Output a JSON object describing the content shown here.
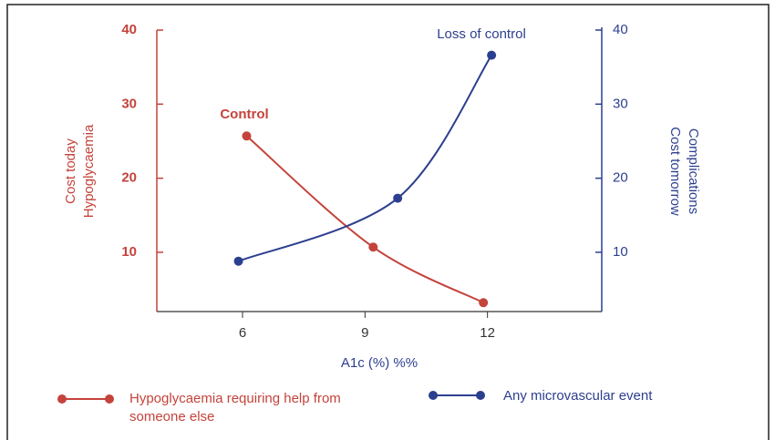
{
  "chart_data": {
    "type": "line",
    "xlabel": "A1c (%) %%",
    "ylabel": [
      "Cost today",
      "Hypoglycaemia"
    ],
    "y2label": [
      "Cost tomorrow",
      "Complications"
    ],
    "annotations": [
      "Control",
      "Loss of control"
    ],
    "xlim": [
      3.9,
      14.8
    ],
    "xticks": [
      6,
      9,
      12
    ],
    "ylim": [
      2,
      40
    ],
    "yticks": [
      10,
      20,
      30,
      40
    ],
    "y2lim": [
      2,
      40
    ],
    "y2ticks": [
      10,
      20,
      30,
      40
    ],
    "series": [
      {
        "name": "Hypoglycaemia requiring help from someone else",
        "color": "#c4433b",
        "x": [
          6.1,
          9.2,
          11.9
        ],
        "values": [
          25.7,
          10.7,
          3.2
        ]
      },
      {
        "name": "Any microvascular event",
        "color": "#2c3f8f",
        "axis": "y2",
        "x": [
          5.9,
          9.8,
          12.1
        ],
        "values": [
          8.8,
          17.3,
          36.6
        ]
      }
    ]
  }
}
